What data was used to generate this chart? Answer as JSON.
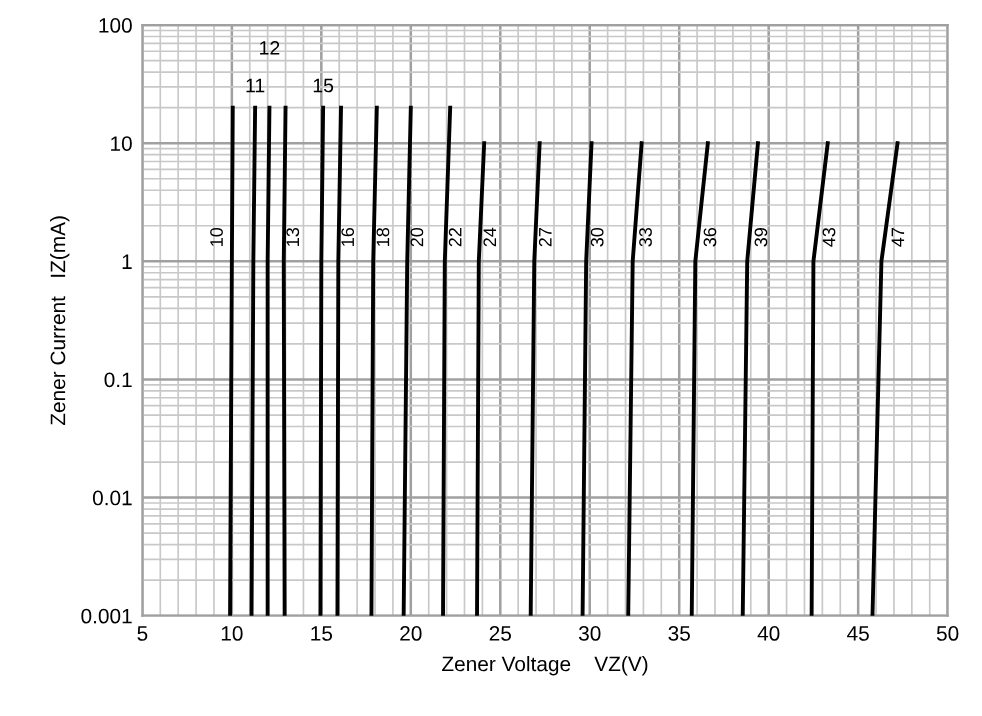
{
  "chart_data": {
    "type": "line",
    "xlabel": "Zener Voltage    VZ(V)",
    "ylabel": "Zener Current   IZ(mA)",
    "log": "y",
    "xlim": [
      5,
      50
    ],
    "xticks": [
      5,
      10,
      15,
      20,
      25,
      30,
      35,
      40,
      45,
      50
    ],
    "ylim": [
      0.001,
      100
    ],
    "yticks": [
      0.001,
      0.01,
      0.1,
      1,
      10,
      100
    ],
    "grid": true,
    "marker": "none",
    "line_style": "solid",
    "series": [
      {
        "name": "10",
        "color": "#000000",
        "x": [
          9.9,
          10.0,
          10.05
        ],
        "values": [
          0.001,
          1,
          20
        ]
      },
      {
        "name": "11",
        "color": "#000000",
        "x": [
          11.1,
          11.2,
          11.3
        ],
        "values": [
          0.001,
          1,
          20
        ]
      },
      {
        "name": "12",
        "color": "#000000",
        "x": [
          12.0,
          12.0,
          12.1
        ],
        "values": [
          0.001,
          1,
          20
        ]
      },
      {
        "name": "13",
        "color": "#000000",
        "x": [
          12.95,
          12.9,
          13.0
        ],
        "values": [
          0.001,
          1,
          20
        ]
      },
      {
        "name": "15",
        "color": "#000000",
        "x": [
          14.95,
          15.0,
          15.1
        ],
        "values": [
          0.001,
          1,
          20
        ]
      },
      {
        "name": "16",
        "color": "#000000",
        "x": [
          15.9,
          15.95,
          16.1
        ],
        "values": [
          0.001,
          1,
          20
        ]
      },
      {
        "name": "18",
        "color": "#000000",
        "x": [
          17.8,
          17.9,
          18.1
        ],
        "values": [
          0.001,
          1,
          20
        ]
      },
      {
        "name": "20",
        "color": "#000000",
        "x": [
          19.6,
          19.8,
          20.0
        ],
        "values": [
          0.001,
          1,
          20
        ]
      },
      {
        "name": "22",
        "color": "#000000",
        "x": [
          21.8,
          21.9,
          22.2
        ],
        "values": [
          0.001,
          1,
          20
        ]
      },
      {
        "name": "24",
        "color": "#000000",
        "x": [
          23.7,
          23.8,
          24.1
        ],
        "values": [
          0.001,
          1,
          10
        ]
      },
      {
        "name": "27",
        "color": "#000000",
        "x": [
          26.7,
          26.9,
          27.2
        ],
        "values": [
          0.001,
          1,
          10
        ]
      },
      {
        "name": "30",
        "color": "#000000",
        "x": [
          29.6,
          29.8,
          30.1
        ],
        "values": [
          0.001,
          1,
          10
        ]
      },
      {
        "name": "33",
        "color": "#000000",
        "x": [
          32.15,
          32.4,
          32.9
        ],
        "values": [
          0.001,
          1,
          10
        ]
      },
      {
        "name": "36",
        "color": "#000000",
        "x": [
          35.7,
          35.9,
          36.6
        ],
        "values": [
          0.001,
          1,
          10
        ]
      },
      {
        "name": "39",
        "color": "#000000",
        "x": [
          38.55,
          38.8,
          39.4
        ],
        "values": [
          0.001,
          1,
          10
        ]
      },
      {
        "name": "43",
        "color": "#000000",
        "x": [
          42.4,
          42.5,
          43.3
        ],
        "values": [
          0.001,
          1,
          10
        ]
      },
      {
        "name": "47",
        "color": "#000000",
        "x": [
          45.8,
          46.3,
          47.2
        ],
        "values": [
          0.001,
          1,
          10
        ]
      }
    ]
  }
}
